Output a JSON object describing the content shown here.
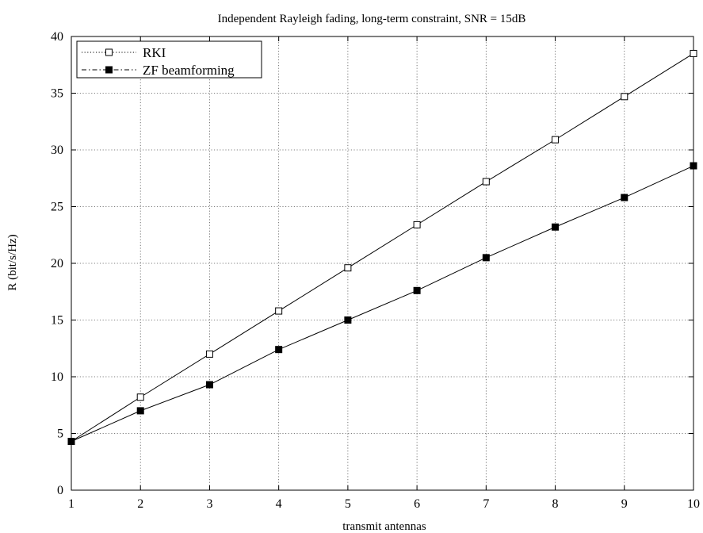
{
  "chart_data": {
    "type": "line",
    "title": "Independent Rayleigh fading, long-term constraint, SNR = 15dB",
    "xlabel": "transmit antennas",
    "ylabel": "R (bit/s/Hz)",
    "xlim": [
      1,
      10
    ],
    "ylim": [
      0,
      40
    ],
    "xticks": [
      1,
      2,
      3,
      4,
      5,
      6,
      7,
      8,
      9,
      10
    ],
    "yticks": [
      0,
      5,
      10,
      15,
      20,
      25,
      30,
      35,
      40
    ],
    "grid": true,
    "legend_position": "top-left",
    "x": [
      1,
      2,
      3,
      4,
      5,
      6,
      7,
      8,
      9,
      10
    ],
    "series": [
      {
        "name": "RKI",
        "marker": "open-square",
        "line_style": "dotted",
        "values": [
          4.3,
          8.2,
          12.0,
          15.8,
          19.6,
          23.4,
          27.2,
          30.9,
          34.7,
          38.5
        ]
      },
      {
        "name": "ZF beamforming",
        "marker": "filled-square",
        "line_style": "dash-dot",
        "values": [
          4.3,
          7.0,
          9.3,
          12.4,
          15.0,
          17.6,
          20.5,
          23.2,
          25.8,
          28.6
        ]
      }
    ]
  }
}
